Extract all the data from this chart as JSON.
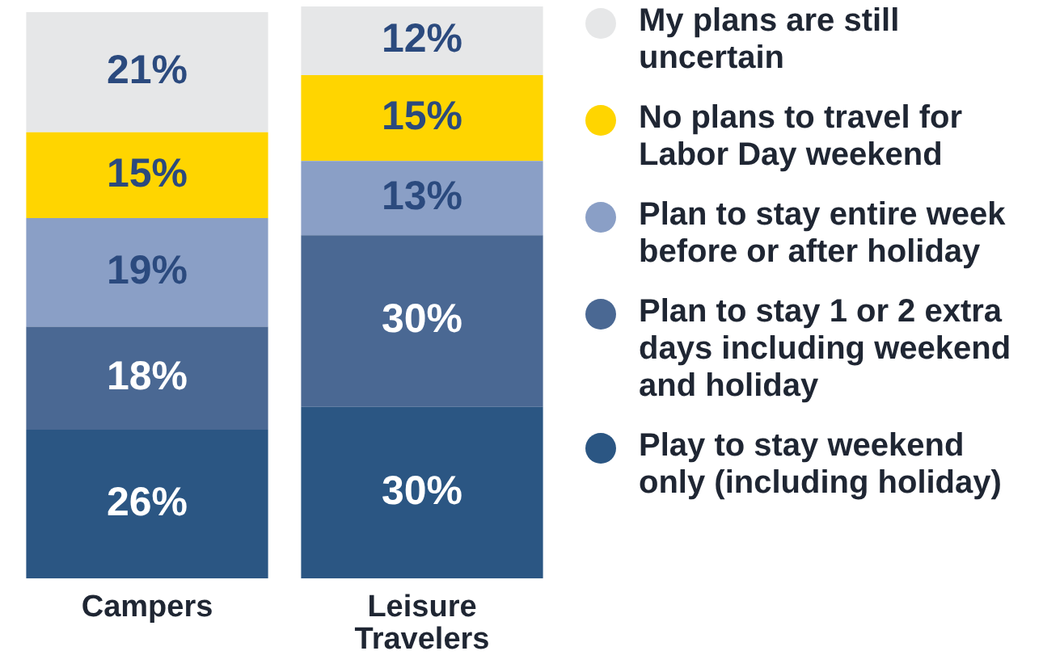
{
  "chart_data": {
    "type": "bar",
    "stacked": true,
    "categories": [
      "Campers",
      "Leisure Travelers"
    ],
    "series": [
      {
        "name": "Play to stay weekend only (including holiday)",
        "color": "#2b5683",
        "values": [
          26,
          30
        ],
        "value_labels": [
          "26%",
          "30%"
        ]
      },
      {
        "name": "Plan to stay 1 or 2 extra days including weekend and holiday",
        "color": "#4a6893",
        "values": [
          18,
          30
        ],
        "value_labels": [
          "18%",
          "30%"
        ]
      },
      {
        "name": "Plan to stay entire week before or after holiday",
        "color": "#8a9fc6",
        "values": [
          19,
          13
        ],
        "value_labels": [
          "19%",
          "13%"
        ]
      },
      {
        "name": "No plans to travel for Labor Day weekend",
        "color": "#ffd500",
        "values": [
          15,
          15
        ],
        "value_labels": [
          "15%",
          "15%"
        ]
      },
      {
        "name": "My plans are still uncertain",
        "color": "#e6e7e8",
        "values": [
          21,
          12
        ],
        "value_labels": [
          "21%",
          "12%"
        ]
      }
    ],
    "legend": "right",
    "grid": false,
    "tick_labels": "x"
  }
}
